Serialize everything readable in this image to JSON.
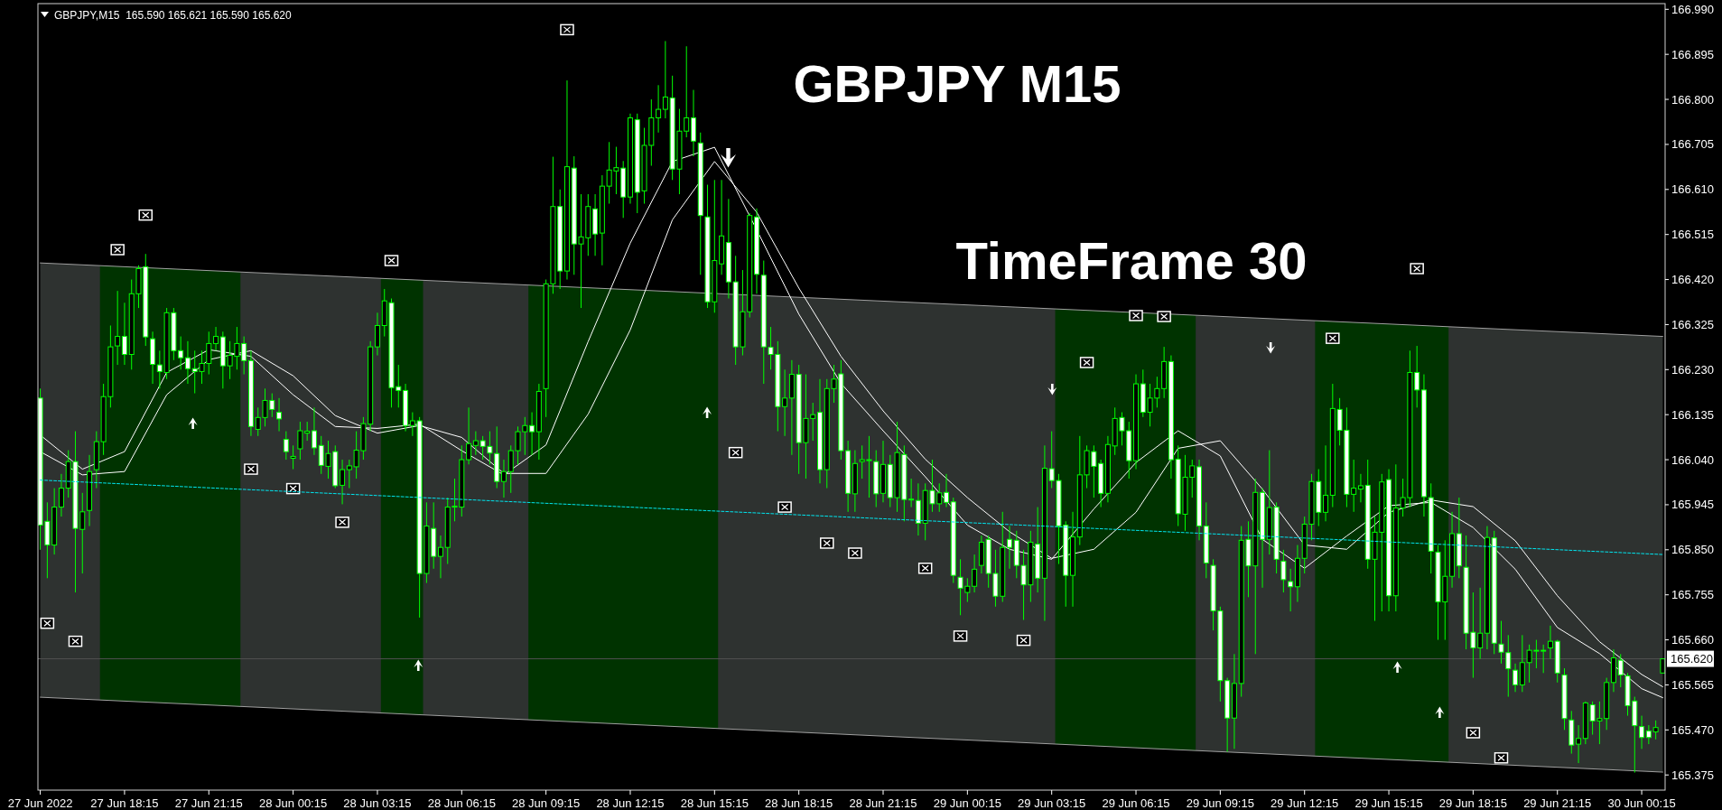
{
  "chart_data": {
    "type": "candlestick",
    "title": "GBPJPY,M15  165.590 165.621 165.590 165.620",
    "annotations": [
      "GBPJPY M15",
      "TimeFrame 30"
    ],
    "xlim": [
      "2022-06-27T15:10",
      "2022-06-30T01:05"
    ],
    "ylim": [
      165.343,
      167.002
    ],
    "xticks": [
      {
        "value": "2022-06-27T15:15",
        "label": "27 Jun 2022"
      },
      {
        "value": "2022-06-27T18:15",
        "label": "27 Jun 18:15"
      },
      {
        "value": "2022-06-27T21:15",
        "label": "27 Jun 21:15"
      },
      {
        "value": "2022-06-28T00:15",
        "label": "28 Jun 00:15"
      },
      {
        "value": "2022-06-28T03:15",
        "label": "28 Jun 03:15"
      },
      {
        "value": "2022-06-28T06:15",
        "label": "28 Jun 06:15"
      },
      {
        "value": "2022-06-28T09:15",
        "label": "28 Jun 09:15"
      },
      {
        "value": "2022-06-28T12:15",
        "label": "28 Jun 12:15"
      },
      {
        "value": "2022-06-28T15:15",
        "label": "28 Jun 15:15"
      },
      {
        "value": "2022-06-28T18:15",
        "label": "28 Jun 18:15"
      },
      {
        "value": "2022-06-28T21:15",
        "label": "28 Jun 21:15"
      },
      {
        "value": "2022-06-29T00:15",
        "label": "29 Jun 00:15"
      },
      {
        "value": "2022-06-29T03:15",
        "label": "29 Jun 03:15"
      },
      {
        "value": "2022-06-29T06:15",
        "label": "29 Jun 06:15"
      },
      {
        "value": "2022-06-29T09:15",
        "label": "29 Jun 09:15"
      },
      {
        "value": "2022-06-29T12:15",
        "label": "29 Jun 12:15"
      },
      {
        "value": "2022-06-29T15:15",
        "label": "29 Jun 15:15"
      },
      {
        "value": "2022-06-29T18:15",
        "label": "29 Jun 18:15"
      },
      {
        "value": "2022-06-29T21:15",
        "label": "29 Jun 21:15"
      },
      {
        "value": "2022-06-30T00:15",
        "label": "30 Jun 00:15"
      }
    ],
    "yticks": [
      {
        "value": 165.375,
        "label": "165.375"
      },
      {
        "value": 165.47,
        "label": "165.470"
      },
      {
        "value": 165.565,
        "label": "165.565"
      },
      {
        "value": 165.66,
        "label": "165.660"
      },
      {
        "value": 165.755,
        "label": "165.755"
      },
      {
        "value": 165.85,
        "label": "165.850"
      },
      {
        "value": 165.945,
        "label": "165.945"
      },
      {
        "value": 166.04,
        "label": "166.040"
      },
      {
        "value": 166.135,
        "label": "166.135"
      },
      {
        "value": 166.23,
        "label": "166.230"
      },
      {
        "value": 166.325,
        "label": "166.325"
      },
      {
        "value": 166.42,
        "label": "166.420"
      },
      {
        "value": 166.515,
        "label": "166.515"
      },
      {
        "value": 166.61,
        "label": "166.610"
      },
      {
        "value": 166.705,
        "label": "166.705"
      },
      {
        "value": 166.8,
        "label": "166.800"
      },
      {
        "value": 166.895,
        "label": "166.895"
      },
      {
        "value": 166.99,
        "label": "166.990"
      }
    ],
    "ref_lines": [
      {
        "axis": "y",
        "value": 165.62,
        "label": "165.620",
        "color": "#505050"
      }
    ],
    "bands": [
      {
        "axis": "x",
        "from": "2022-06-27T17:30",
        "to": "2022-06-27T22:15",
        "color": "#003300"
      },
      {
        "axis": "x",
        "from": "2022-06-28T03:30",
        "to": "2022-06-28T04:45",
        "color": "#003300"
      },
      {
        "axis": "x",
        "from": "2022-06-28T08:45",
        "to": "2022-06-28T15:15",
        "color": "#003300"
      },
      {
        "axis": "x",
        "from": "2022-06-29T03:30",
        "to": "2022-06-29T08:15",
        "color": "#003300"
      },
      {
        "axis": "x",
        "from": "2022-06-29T12:45",
        "to": "2022-06-29T17:15",
        "color": "#003300"
      }
    ],
    "x": [
      "2022-06-27T15:15",
      "2022-06-27T15:30",
      "2022-06-27T15:45",
      "2022-06-27T16:00",
      "2022-06-27T16:15",
      "2022-06-27T16:30",
      "2022-06-27T16:45",
      "2022-06-27T17:00",
      "2022-06-27T17:15",
      "2022-06-27T17:30",
      "2022-06-27T17:45",
      "2022-06-27T18:00",
      "2022-06-27T18:15",
      "2022-06-27T18:30",
      "2022-06-27T18:45",
      "2022-06-27T19:00",
      "2022-06-27T19:15",
      "2022-06-27T19:30",
      "2022-06-27T19:45",
      "2022-06-27T20:00",
      "2022-06-27T20:15",
      "2022-06-27T20:30",
      "2022-06-27T20:45",
      "2022-06-27T21:00",
      "2022-06-27T21:15",
      "2022-06-27T21:30",
      "2022-06-27T21:45",
      "2022-06-27T22:00",
      "2022-06-27T22:15",
      "2022-06-27T22:30",
      "2022-06-27T22:45",
      "2022-06-27T23:00",
      "2022-06-27T23:15",
      "2022-06-27T23:30",
      "2022-06-27T23:45",
      "2022-06-28T00:00",
      "2022-06-28T00:15",
      "2022-06-28T00:30",
      "2022-06-28T00:45",
      "2022-06-28T01:00",
      "2022-06-28T01:15",
      "2022-06-28T01:30",
      "2022-06-28T01:45",
      "2022-06-28T02:00",
      "2022-06-28T02:15",
      "2022-06-28T02:30",
      "2022-06-28T02:45",
      "2022-06-28T03:00",
      "2022-06-28T03:15",
      "2022-06-28T03:30",
      "2022-06-28T03:45",
      "2022-06-28T04:00",
      "2022-06-28T04:15",
      "2022-06-28T04:30",
      "2022-06-28T04:45",
      "2022-06-28T05:00",
      "2022-06-28T05:15",
      "2022-06-28T05:30",
      "2022-06-28T05:45",
      "2022-06-28T06:00",
      "2022-06-28T06:15",
      "2022-06-28T06:30",
      "2022-06-28T06:45",
      "2022-06-28T07:00",
      "2022-06-28T07:15",
      "2022-06-28T07:30",
      "2022-06-28T07:45",
      "2022-06-28T08:00",
      "2022-06-28T08:15",
      "2022-06-28T08:30",
      "2022-06-28T08:45",
      "2022-06-28T09:00",
      "2022-06-28T09:15",
      "2022-06-28T09:30",
      "2022-06-28T09:45",
      "2022-06-28T10:00",
      "2022-06-28T10:15",
      "2022-06-28T10:30",
      "2022-06-28T10:45",
      "2022-06-28T11:00",
      "2022-06-28T11:15",
      "2022-06-28T11:30",
      "2022-06-28T11:45",
      "2022-06-28T12:00",
      "2022-06-28T12:15",
      "2022-06-28T12:30",
      "2022-06-28T12:45",
      "2022-06-28T13:00",
      "2022-06-28T13:15",
      "2022-06-28T13:30",
      "2022-06-28T13:45",
      "2022-06-28T14:00",
      "2022-06-28T14:15",
      "2022-06-28T14:30",
      "2022-06-28T14:45",
      "2022-06-28T15:00",
      "2022-06-28T15:15",
      "2022-06-28T15:30",
      "2022-06-28T15:45",
      "2022-06-28T16:00",
      "2022-06-28T16:15",
      "2022-06-28T16:30",
      "2022-06-28T16:45",
      "2022-06-28T17:00",
      "2022-06-28T17:15",
      "2022-06-28T17:30",
      "2022-06-28T17:45",
      "2022-06-28T18:00",
      "2022-06-28T18:15",
      "2022-06-28T18:30",
      "2022-06-28T18:45",
      "2022-06-28T19:00",
      "2022-06-28T19:15",
      "2022-06-28T19:30",
      "2022-06-28T19:45",
      "2022-06-28T20:00",
      "2022-06-28T20:15",
      "2022-06-28T20:30",
      "2022-06-28T20:45",
      "2022-06-28T21:00",
      "2022-06-28T21:15",
      "2022-06-28T21:30",
      "2022-06-28T21:45",
      "2022-06-28T22:00",
      "2022-06-28T22:15",
      "2022-06-28T22:30",
      "2022-06-28T22:45",
      "2022-06-28T23:00",
      "2022-06-28T23:15",
      "2022-06-28T23:30",
      "2022-06-28T23:45",
      "2022-06-29T00:00",
      "2022-06-29T00:15",
      "2022-06-29T00:30",
      "2022-06-29T00:45",
      "2022-06-29T01:00",
      "2022-06-29T01:15",
      "2022-06-29T01:30",
      "2022-06-29T01:45",
      "2022-06-29T02:00",
      "2022-06-29T02:15",
      "2022-06-29T02:30",
      "2022-06-29T02:45",
      "2022-06-29T03:00",
      "2022-06-29T03:15",
      "2022-06-29T03:30",
      "2022-06-29T03:45",
      "2022-06-29T04:00",
      "2022-06-29T04:15",
      "2022-06-29T04:30",
      "2022-06-29T04:45",
      "2022-06-29T05:00",
      "2022-06-29T05:15",
      "2022-06-29T05:30",
      "2022-06-29T05:45",
      "2022-06-29T06:00",
      "2022-06-29T06:15",
      "2022-06-29T06:30",
      "2022-06-29T06:45",
      "2022-06-29T07:00",
      "2022-06-29T07:15",
      "2022-06-29T07:30",
      "2022-06-29T07:45",
      "2022-06-29T08:00",
      "2022-06-29T08:15",
      "2022-06-29T08:30",
      "2022-06-29T08:45",
      "2022-06-29T09:00",
      "2022-06-29T09:15",
      "2022-06-29T09:30",
      "2022-06-29T09:45",
      "2022-06-29T10:00",
      "2022-06-29T10:15",
      "2022-06-29T10:30",
      "2022-06-29T10:45",
      "2022-06-29T11:00",
      "2022-06-29T11:15",
      "2022-06-29T11:30",
      "2022-06-29T11:45",
      "2022-06-29T12:00",
      "2022-06-29T12:15",
      "2022-06-29T12:30",
      "2022-06-29T12:45",
      "2022-06-29T13:00",
      "2022-06-29T13:15",
      "2022-06-29T13:30",
      "2022-06-29T13:45",
      "2022-06-29T14:00",
      "2022-06-29T14:15",
      "2022-06-29T14:30",
      "2022-06-29T14:45",
      "2022-06-29T15:00",
      "2022-06-29T15:15",
      "2022-06-29T15:30",
      "2022-06-29T15:45",
      "2022-06-29T16:00",
      "2022-06-29T16:15",
      "2022-06-29T16:30",
      "2022-06-29T16:45",
      "2022-06-29T17:00",
      "2022-06-29T17:15",
      "2022-06-29T17:30",
      "2022-06-29T17:45",
      "2022-06-29T18:00",
      "2022-06-29T18:15",
      "2022-06-29T18:30",
      "2022-06-29T18:45",
      "2022-06-29T19:00",
      "2022-06-29T19:15",
      "2022-06-29T19:30",
      "2022-06-29T19:45",
      "2022-06-29T20:00",
      "2022-06-29T20:15",
      "2022-06-29T20:30",
      "2022-06-29T20:45",
      "2022-06-29T21:00",
      "2022-06-29T21:15",
      "2022-06-29T21:30",
      "2022-06-29T21:45",
      "2022-06-29T22:00",
      "2022-06-29T22:15",
      "2022-06-29T22:30",
      "2022-06-29T22:45",
      "2022-06-29T23:00",
      "2022-06-29T23:15",
      "2022-06-29T23:30",
      "2022-06-29T23:45",
      "2022-06-30T00:00",
      "2022-06-30T00:15",
      "2022-06-30T00:30",
      "2022-06-30T00:45",
      "2022-06-30T01:00"
    ],
    "ohlc": [
      [
        166.17,
        166.19,
        165.85,
        165.902
      ],
      [
        165.91,
        165.95,
        165.79,
        165.86
      ],
      [
        165.86,
        165.98,
        165.84,
        165.94
      ],
      [
        165.94,
        166.01,
        165.92,
        165.98
      ],
      [
        165.98,
        166.06,
        165.96,
        166.036
      ],
      [
        166.036,
        166.1,
        165.76,
        165.895
      ],
      [
        165.893,
        165.97,
        165.8,
        165.93
      ],
      [
        165.933,
        166.05,
        165.9,
        166.015
      ],
      [
        166.019,
        166.1,
        165.98,
        166.078
      ],
      [
        166.078,
        166.2,
        166.05,
        166.173
      ],
      [
        166.173,
        166.323,
        166.15,
        166.278
      ],
      [
        166.28,
        166.396,
        166.24,
        166.3
      ],
      [
        166.3,
        166.371,
        166.24,
        166.262
      ],
      [
        166.262,
        166.42,
        166.23,
        166.39
      ],
      [
        166.39,
        166.45,
        166.36,
        166.443
      ],
      [
        166.447,
        166.474,
        166.28,
        166.299
      ],
      [
        166.295,
        166.31,
        166.2,
        166.241
      ],
      [
        166.24,
        166.27,
        166.19,
        166.226
      ],
      [
        166.224,
        166.36,
        166.21,
        166.35
      ],
      [
        166.35,
        166.36,
        166.25,
        166.27
      ],
      [
        166.27,
        166.3,
        166.23,
        166.255
      ],
      [
        166.255,
        166.29,
        166.2,
        166.232
      ],
      [
        166.232,
        166.27,
        166.18,
        166.226
      ],
      [
        166.226,
        166.27,
        166.2,
        166.243
      ],
      [
        166.243,
        166.31,
        166.22,
        166.285
      ],
      [
        166.285,
        166.32,
        166.27,
        166.3
      ],
      [
        166.299,
        166.31,
        166.19,
        166.238
      ],
      [
        166.238,
        166.29,
        166.21,
        166.26
      ],
      [
        166.258,
        166.32,
        166.23,
        166.285
      ],
      [
        166.285,
        166.3,
        166.22,
        166.249
      ],
      [
        166.249,
        166.27,
        166.09,
        166.11
      ],
      [
        166.104,
        166.15,
        166.09,
        166.129
      ],
      [
        166.129,
        166.19,
        166.11,
        166.165
      ],
      [
        166.165,
        166.18,
        166.13,
        166.146
      ],
      [
        166.14,
        166.17,
        166.1,
        166.126
      ],
      [
        166.083,
        166.1,
        166.04,
        166.057
      ],
      [
        166.043,
        166.07,
        166.02,
        166.047
      ],
      [
        166.063,
        166.12,
        166.04,
        166.101
      ],
      [
        166.096,
        166.12,
        166.08,
        166.1
      ],
      [
        166.101,
        166.15,
        166.05,
        166.065
      ],
      [
        166.07,
        166.09,
        166.01,
        166.028
      ],
      [
        166.026,
        166.08,
        166.0,
        166.053
      ],
      [
        166.057,
        166.07,
        165.98,
        165.985
      ],
      [
        165.986,
        166.04,
        165.946,
        166.019
      ],
      [
        166.019,
        166.04,
        165.98,
        166.027
      ],
      [
        166.025,
        166.1,
        166.0,
        166.06
      ],
      [
        166.059,
        166.13,
        166.04,
        166.116
      ],
      [
        166.115,
        166.29,
        166.1,
        166.278
      ],
      [
        166.278,
        166.35,
        166.26,
        166.323
      ],
      [
        166.323,
        166.4,
        166.3,
        166.375
      ],
      [
        166.371,
        166.38,
        166.15,
        166.192
      ],
      [
        166.194,
        166.24,
        166.15,
        166.186
      ],
      [
        166.186,
        166.2,
        166.1,
        166.112
      ],
      [
        166.112,
        166.14,
        166.09,
        166.122
      ],
      [
        166.122,
        166.13,
        165.707,
        165.8
      ],
      [
        165.8,
        165.95,
        165.78,
        165.9
      ],
      [
        165.895,
        165.95,
        165.81,
        165.836
      ],
      [
        165.836,
        165.88,
        165.79,
        165.855
      ],
      [
        165.855,
        165.96,
        165.82,
        165.94
      ],
      [
        165.94,
        166.0,
        165.91,
        165.942
      ],
      [
        165.94,
        166.07,
        165.92,
        166.04
      ],
      [
        166.04,
        166.15,
        166.03,
        166.074
      ],
      [
        166.07,
        166.1,
        166.05,
        166.08
      ],
      [
        166.08,
        166.09,
        166.04,
        166.068
      ],
      [
        166.068,
        166.1,
        166.03,
        166.054
      ],
      [
        166.053,
        166.11,
        165.98,
        165.994
      ],
      [
        165.994,
        166.04,
        165.96,
        166.015
      ],
      [
        166.015,
        166.07,
        165.97,
        166.059
      ],
      [
        166.059,
        166.11,
        166.03,
        166.099
      ],
      [
        166.099,
        166.13,
        166.05,
        166.112
      ],
      [
        166.112,
        166.14,
        166.05,
        166.099
      ],
      [
        166.099,
        166.2,
        166.04,
        166.184
      ],
      [
        166.19,
        166.42,
        166.13,
        166.411
      ],
      [
        166.411,
        166.679,
        166.39,
        166.574
      ],
      [
        166.574,
        166.61,
        166.4,
        166.438
      ],
      [
        166.438,
        166.84,
        166.42,
        166.658
      ],
      [
        166.655,
        166.68,
        166.43,
        166.495
      ],
      [
        166.495,
        166.6,
        166.36,
        166.51
      ],
      [
        166.508,
        166.6,
        166.47,
        166.574
      ],
      [
        166.569,
        166.6,
        166.47,
        166.516
      ],
      [
        166.518,
        166.64,
        166.45,
        166.617
      ],
      [
        166.617,
        166.71,
        166.58,
        166.651
      ],
      [
        166.649,
        166.7,
        166.6,
        166.656
      ],
      [
        166.655,
        166.67,
        166.55,
        166.594
      ],
      [
        166.594,
        166.77,
        166.58,
        166.761
      ],
      [
        166.757,
        166.77,
        166.56,
        166.604
      ],
      [
        166.607,
        166.74,
        166.58,
        166.703
      ],
      [
        166.703,
        166.8,
        166.66,
        166.761
      ],
      [
        166.761,
        166.83,
        166.73,
        166.779
      ],
      [
        166.779,
        166.923,
        166.76,
        166.805
      ],
      [
        166.803,
        166.85,
        166.63,
        166.653
      ],
      [
        166.653,
        166.78,
        166.6,
        166.733
      ],
      [
        166.733,
        166.912,
        166.72,
        166.761
      ],
      [
        166.761,
        166.82,
        166.68,
        166.712
      ],
      [
        166.708,
        166.73,
        166.43,
        166.555
      ],
      [
        166.552,
        166.62,
        166.36,
        166.373
      ],
      [
        166.373,
        166.63,
        166.35,
        166.46
      ],
      [
        166.453,
        166.63,
        166.43,
        166.512
      ],
      [
        166.498,
        166.59,
        166.38,
        166.415
      ],
      [
        166.415,
        166.47,
        166.24,
        166.278
      ],
      [
        166.278,
        166.44,
        166.26,
        166.352
      ],
      [
        166.352,
        166.56,
        166.34,
        166.555
      ],
      [
        166.552,
        166.57,
        166.39,
        166.431
      ],
      [
        166.429,
        166.46,
        166.2,
        166.278
      ],
      [
        166.277,
        166.32,
        166.23,
        166.262
      ],
      [
        166.262,
        166.29,
        166.1,
        166.152
      ],
      [
        166.152,
        166.23,
        166.09,
        166.17
      ],
      [
        166.17,
        166.25,
        166.05,
        166.22
      ],
      [
        166.22,
        166.24,
        166.01,
        166.076
      ],
      [
        166.076,
        166.22,
        166.0,
        166.127
      ],
      [
        166.127,
        166.16,
        166.08,
        166.135
      ],
      [
        166.14,
        166.21,
        165.99,
        166.019
      ],
      [
        166.019,
        166.21,
        165.98,
        166.19
      ],
      [
        166.19,
        166.24,
        166.16,
        166.21
      ],
      [
        166.221,
        166.25,
        166.04,
        166.059
      ],
      [
        166.059,
        166.08,
        165.93,
        165.969
      ],
      [
        165.968,
        166.06,
        165.93,
        166.032
      ],
      [
        166.036,
        166.07,
        166.0,
        166.04
      ],
      [
        166.038,
        166.09,
        165.96,
        166.04
      ],
      [
        166.036,
        166.06,
        165.94,
        165.968
      ],
      [
        165.969,
        166.08,
        165.95,
        166.03
      ],
      [
        166.03,
        166.05,
        165.94,
        165.96
      ],
      [
        165.96,
        166.12,
        165.93,
        166.055
      ],
      [
        166.051,
        166.07,
        165.91,
        165.956
      ],
      [
        165.955,
        166.0,
        165.94,
        165.957
      ],
      [
        165.954,
        165.99,
        165.88,
        165.906
      ],
      [
        165.906,
        165.99,
        165.87,
        165.975
      ],
      [
        165.975,
        166.04,
        165.93,
        165.947
      ],
      [
        165.947,
        165.99,
        165.93,
        165.97
      ],
      [
        165.971,
        166.01,
        165.94,
        165.95
      ],
      [
        165.951,
        165.96,
        165.78,
        165.796
      ],
      [
        165.792,
        165.83,
        165.712,
        165.769
      ],
      [
        165.76,
        165.79,
        165.74,
        165.773
      ],
      [
        165.773,
        165.84,
        165.76,
        165.809
      ],
      [
        165.817,
        165.88,
        165.8,
        165.866
      ],
      [
        165.872,
        165.88,
        165.77,
        165.8
      ],
      [
        165.8,
        165.85,
        165.73,
        165.752
      ],
      [
        165.752,
        165.93,
        165.74,
        165.855
      ],
      [
        165.872,
        165.9,
        165.81,
        165.855
      ],
      [
        165.87,
        165.89,
        165.79,
        165.817
      ],
      [
        165.817,
        165.85,
        165.702,
        165.776
      ],
      [
        165.776,
        165.89,
        165.74,
        165.866
      ],
      [
        165.862,
        165.94,
        165.76,
        165.79
      ],
      [
        165.79,
        166.07,
        165.7,
        166.022
      ],
      [
        166.021,
        166.1,
        165.98,
        165.996
      ],
      [
        165.996,
        166.01,
        165.82,
        165.9
      ],
      [
        165.902,
        165.91,
        165.73,
        165.796
      ],
      [
        165.796,
        165.93,
        165.73,
        165.877
      ],
      [
        165.877,
        166.09,
        165.86,
        166.008
      ],
      [
        166.008,
        166.07,
        165.98,
        166.059
      ],
      [
        166.057,
        166.07,
        165.96,
        166.026
      ],
      [
        166.032,
        166.04,
        165.94,
        165.969
      ],
      [
        165.969,
        166.09,
        165.95,
        166.072
      ],
      [
        166.069,
        166.15,
        166.05,
        166.127
      ],
      [
        166.129,
        166.14,
        166.07,
        166.101
      ],
      [
        166.101,
        166.12,
        166.0,
        166.038
      ],
      [
        166.038,
        166.22,
        166.02,
        166.2
      ],
      [
        166.2,
        166.23,
        166.13,
        166.14
      ],
      [
        166.14,
        166.2,
        166.11,
        166.17
      ],
      [
        166.17,
        166.215,
        166.15,
        166.19
      ],
      [
        166.19,
        166.278,
        166.17,
        166.247
      ],
      [
        166.247,
        166.26,
        166.0,
        166.04
      ],
      [
        166.041,
        166.07,
        165.9,
        165.926
      ],
      [
        165.925,
        166.05,
        165.89,
        166.003
      ],
      [
        166.003,
        166.04,
        165.96,
        166.027
      ],
      [
        166.025,
        166.04,
        165.87,
        165.9
      ],
      [
        165.9,
        165.95,
        165.79,
        165.822
      ],
      [
        165.817,
        165.83,
        165.68,
        165.721
      ],
      [
        165.721,
        165.73,
        165.53,
        165.574
      ],
      [
        165.574,
        165.58,
        165.424,
        165.495
      ],
      [
        165.495,
        165.63,
        165.43,
        165.568
      ],
      [
        165.568,
        165.9,
        165.54,
        165.87
      ],
      [
        165.872,
        165.91,
        165.75,
        165.816
      ],
      [
        165.816,
        166.0,
        165.63,
        165.971
      ],
      [
        165.971,
        165.98,
        165.77,
        165.872
      ],
      [
        165.872,
        166.06,
        165.84,
        165.939
      ],
      [
        165.94,
        165.95,
        165.8,
        165.83
      ],
      [
        165.826,
        165.85,
        165.76,
        165.787
      ],
      [
        165.783,
        165.81,
        165.72,
        165.772
      ],
      [
        165.772,
        165.86,
        165.74,
        165.832
      ],
      [
        165.832,
        165.92,
        165.8,
        165.904
      ],
      [
        165.904,
        166.01,
        165.87,
        165.994
      ],
      [
        165.994,
        166.02,
        165.9,
        165.929
      ],
      [
        165.929,
        166.07,
        165.91,
        165.965
      ],
      [
        165.965,
        166.2,
        165.94,
        166.148
      ],
      [
        166.146,
        166.17,
        166.07,
        166.102
      ],
      [
        166.102,
        166.15,
        165.94,
        165.967
      ],
      [
        165.967,
        166.04,
        165.93,
        165.98
      ],
      [
        165.978,
        166.01,
        165.95,
        165.985
      ],
      [
        165.986,
        166.04,
        165.81,
        165.83
      ],
      [
        165.83,
        165.92,
        165.7,
        165.887
      ],
      [
        165.887,
        166.01,
        165.72,
        165.993
      ],
      [
        165.998,
        166.02,
        165.72,
        165.753
      ],
      [
        165.753,
        166.03,
        165.72,
        165.938
      ],
      [
        165.938,
        166.0,
        165.92,
        165.96
      ],
      [
        165.96,
        166.27,
        165.94,
        166.224
      ],
      [
        166.224,
        166.28,
        166.15,
        166.187
      ],
      [
        166.187,
        166.22,
        165.92,
        165.962
      ],
      [
        165.96,
        165.99,
        165.8,
        165.847
      ],
      [
        165.845,
        165.86,
        165.66,
        165.74
      ],
      [
        165.74,
        165.87,
        165.66,
        165.794
      ],
      [
        165.794,
        165.93,
        165.77,
        165.884
      ],
      [
        165.884,
        165.96,
        165.79,
        165.816
      ],
      [
        165.813,
        165.88,
        165.64,
        165.674
      ],
      [
        165.676,
        165.76,
        165.58,
        165.643
      ],
      [
        165.643,
        165.77,
        165.62,
        165.674
      ],
      [
        165.674,
        165.9,
        165.64,
        165.876
      ],
      [
        165.875,
        165.89,
        165.63,
        165.653
      ],
      [
        165.651,
        165.7,
        165.61,
        165.634
      ],
      [
        165.633,
        165.67,
        165.54,
        165.599
      ],
      [
        165.596,
        165.61,
        165.55,
        165.565
      ],
      [
        165.565,
        165.67,
        165.55,
        165.612
      ],
      [
        165.612,
        165.65,
        165.57,
        165.638
      ],
      [
        165.637,
        165.66,
        165.6,
        165.638
      ],
      [
        165.637,
        165.65,
        165.59,
        165.638
      ],
      [
        165.643,
        165.69,
        165.62,
        165.657
      ],
      [
        165.657,
        165.66,
        165.57,
        165.59
      ],
      [
        165.586,
        165.6,
        165.47,
        165.494
      ],
      [
        165.491,
        165.51,
        165.42,
        165.438
      ],
      [
        165.44,
        165.48,
        165.4,
        165.452
      ],
      [
        165.452,
        165.53,
        165.44,
        165.527
      ],
      [
        165.523,
        165.53,
        165.46,
        165.489
      ],
      [
        165.489,
        165.53,
        165.44,
        165.494
      ],
      [
        165.494,
        165.58,
        165.47,
        165.57
      ],
      [
        165.57,
        165.64,
        165.55,
        165.622
      ],
      [
        165.617,
        165.63,
        165.56,
        165.586
      ],
      [
        165.584,
        165.59,
        165.5,
        165.521
      ],
      [
        165.531,
        165.54,
        165.38,
        165.479
      ],
      [
        165.477,
        165.5,
        165.43,
        165.454
      ],
      [
        165.468,
        165.48,
        165.44,
        165.454
      ],
      [
        165.466,
        165.49,
        165.45,
        165.475
      ],
      [
        165.59,
        165.621,
        165.59,
        165.62
      ]
    ],
    "series": [
      {
        "type": "line",
        "color": "#00e5ee",
        "line_style": "dotted",
        "x": [
          "2022-06-27T15:15",
          "2022-06-30T01:00"
        ],
        "values": [
          165.997,
          165.84
        ],
        "lower": [
          165.539,
          165.381
        ],
        "upper": [
          166.455,
          166.3
        ]
      },
      {
        "type": "line",
        "color": "#a0a0a0",
        "x": [
          "2022-06-27T15:15",
          "2022-06-30T01:00"
        ],
        "values": [
          166.455,
          166.3
        ]
      },
      {
        "type": "line",
        "color": "#a0a0a0",
        "x": [
          "2022-06-27T15:15",
          "2022-06-30T01:00"
        ],
        "values": [
          165.539,
          165.381
        ]
      },
      {
        "type": "line",
        "color": "#ffffff",
        "x": [
          "2022-06-27T15:15",
          "2022-06-27T16:45",
          "2022-06-27T18:15",
          "2022-06-27T19:45",
          "2022-06-27T21:15",
          "2022-06-27T22:45",
          "2022-06-28T00:15",
          "2022-06-28T01:45",
          "2022-06-28T03:15",
          "2022-06-28T04:45",
          "2022-06-28T06:15",
          "2022-06-28T07:45",
          "2022-06-28T09:15",
          "2022-06-28T10:45",
          "2022-06-28T12:15",
          "2022-06-28T13:45",
          "2022-06-28T15:15",
          "2022-06-28T16:45",
          "2022-06-28T18:15",
          "2022-06-28T19:45",
          "2022-06-28T21:15",
          "2022-06-28T22:45",
          "2022-06-29T00:15",
          "2022-06-29T01:45",
          "2022-06-29T03:15",
          "2022-06-29T04:45",
          "2022-06-29T06:15",
          "2022-06-29T07:45",
          "2022-06-29T09:15",
          "2022-06-29T10:45",
          "2022-06-29T12:15",
          "2022-06-29T13:45",
          "2022-06-29T15:15",
          "2022-06-29T16:45",
          "2022-06-29T18:15",
          "2022-06-29T19:45",
          "2022-06-29T21:15",
          "2022-06-29T22:45",
          "2022-06-30T00:15",
          "2022-06-30T01:00"
        ],
        "values": [
          166.092,
          166.02,
          166.057,
          166.224,
          166.272,
          166.258,
          166.177,
          166.11,
          166.106,
          166.115,
          166.059,
          166.008,
          166.071,
          166.289,
          166.497,
          166.669,
          166.699,
          166.525,
          166.347,
          166.201,
          166.101,
          166.004,
          165.902,
          165.851,
          165.83,
          165.936,
          166.034,
          166.101,
          166.048,
          165.872,
          165.811,
          165.879,
          165.943,
          165.95,
          165.897,
          165.809,
          165.686,
          165.631,
          165.557,
          165.538
        ]
      },
      {
        "type": "line",
        "color": "#ffffff",
        "x": [
          "2022-06-27T15:15",
          "2022-06-27T16:45",
          "2022-06-27T18:15",
          "2022-06-27T19:45",
          "2022-06-27T21:15",
          "2022-06-27T22:45",
          "2022-06-28T00:15",
          "2022-06-28T01:45",
          "2022-06-28T03:15",
          "2022-06-28T04:45",
          "2022-06-28T06:15",
          "2022-06-28T07:45",
          "2022-06-28T09:15",
          "2022-06-28T10:45",
          "2022-06-28T12:15",
          "2022-06-28T13:45",
          "2022-06-28T15:15",
          "2022-06-28T16:45",
          "2022-06-28T18:15",
          "2022-06-28T19:45",
          "2022-06-28T21:15",
          "2022-06-28T22:45",
          "2022-06-29T00:15",
          "2022-06-29T01:45",
          "2022-06-29T03:15",
          "2022-06-29T04:45",
          "2022-06-29T06:15",
          "2022-06-29T07:45",
          "2022-06-29T09:15",
          "2022-06-29T10:45",
          "2022-06-29T12:15",
          "2022-06-29T13:45",
          "2022-06-29T15:15",
          "2022-06-29T16:45",
          "2022-06-29T18:15",
          "2022-06-29T19:45",
          "2022-06-29T21:15",
          "2022-06-29T22:45",
          "2022-06-30T00:15",
          "2022-06-30T01:00"
        ],
        "values": [
          166.057,
          166.008,
          166.015,
          166.177,
          166.251,
          166.27,
          166.217,
          166.133,
          166.096,
          166.112,
          166.087,
          166.011,
          166.011,
          166.136,
          166.314,
          166.546,
          166.669,
          166.562,
          166.402,
          166.258,
          166.143,
          166.041,
          165.96,
          165.888,
          165.832,
          165.851,
          165.929,
          166.064,
          166.08,
          165.978,
          165.86,
          165.851,
          165.929,
          165.955,
          165.941,
          165.869,
          165.753,
          165.656,
          165.587,
          165.561
        ]
      },
      {
        "type": "scatter",
        "color": "#ffffff",
        "marker": "cross",
        "x": [
          "2022-06-27T15:30",
          "2022-06-27T16:30",
          "2022-06-27T18:00",
          "2022-06-27T19:00",
          "2022-06-27T22:45",
          "2022-06-28T00:15",
          "2022-06-28T02:00",
          "2022-06-28T03:45",
          "2022-06-28T10:00",
          "2022-06-28T16:00",
          "2022-06-28T17:45",
          "2022-06-28T19:15",
          "2022-06-28T20:15",
          "2022-06-28T22:45",
          "2022-06-29T00:00",
          "2022-06-29T02:15",
          "2022-06-29T04:30",
          "2022-06-29T06:15",
          "2022-06-29T07:15",
          "2022-06-29T13:15",
          "2022-06-29T16:15",
          "2022-06-29T18:15",
          "2022-06-29T19:15"
        ],
        "values": [
          165.695,
          165.657,
          166.483,
          166.556,
          166.02,
          165.979,
          165.908,
          166.46,
          166.947,
          166.055,
          165.94,
          165.864,
          165.843,
          165.811,
          165.668,
          165.659,
          166.245,
          166.344,
          166.342,
          166.296,
          166.443,
          165.464,
          165.411
        ]
      }
    ]
  }
}
